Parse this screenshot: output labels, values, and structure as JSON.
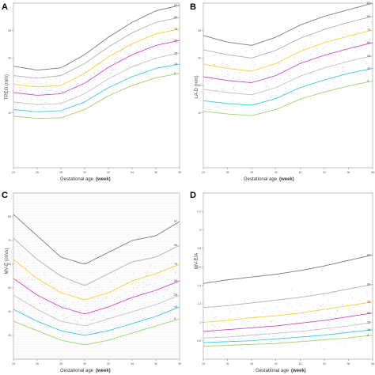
{
  "figure": {
    "panels": [
      {
        "letter": "A",
        "ylabel": "TPEG (mm)",
        "xlabel": "Gestational age",
        "xunit": "(week)"
      },
      {
        "letter": "B",
        "ylabel": "LA-D (mm)",
        "xlabel": "Gestational age",
        "xunit": "(week)"
      },
      {
        "letter": "C",
        "ylabel": "MV-E (cm/s)",
        "xlabel": "Gestational age",
        "xunit": "(week)"
      },
      {
        "letter": "D",
        "ylabel": "MV-E/A",
        "xlabel": "Gestational age",
        "xunit": "(week)"
      }
    ]
  },
  "chart_data": [
    {
      "type": "line",
      "panel": "A",
      "title": "",
      "xlabel": "Gestational age (week)",
      "ylabel": "TPEG (mm)",
      "x": [
        24,
        26,
        28,
        30,
        32,
        34,
        36,
        38
      ],
      "xlim": [
        24,
        38
      ],
      "ylim": [
        0,
        30
      ],
      "yticks": [
        10,
        20,
        25
      ],
      "grid": false,
      "scatter": true,
      "series": [
        {
          "name": "97",
          "color": "#7a7a7a",
          "values": [
            18.5,
            17.8,
            18.2,
            20.6,
            23.8,
            26.5,
            28.6,
            29.6
          ]
        },
        {
          "name": "90",
          "color": "#b0b0b0",
          "values": [
            16.8,
            16.3,
            16.8,
            19.0,
            22.0,
            24.6,
            26.5,
            27.4
          ]
        },
        {
          "name": "75",
          "color": "#f2d23a",
          "values": [
            15.2,
            14.7,
            15.0,
            17.2,
            20.2,
            22.6,
            24.4,
            25.3
          ]
        },
        {
          "name": "50",
          "color": "#d24ac8",
          "values": [
            13.7,
            13.2,
            13.5,
            15.4,
            18.3,
            20.6,
            22.3,
            23.2
          ]
        },
        {
          "name": "25",
          "color": "#c2c2c2",
          "values": [
            12.0,
            11.5,
            11.7,
            13.5,
            16.2,
            18.4,
            20.0,
            20.9
          ]
        },
        {
          "name": "10",
          "color": "#3cc8e0",
          "values": [
            10.6,
            10.2,
            10.4,
            12.0,
            14.6,
            16.6,
            18.1,
            18.9
          ]
        },
        {
          "name": "3",
          "color": "#9ad66a",
          "values": [
            9.4,
            9.0,
            9.1,
            10.6,
            13.1,
            15.0,
            16.4,
            17.2
          ]
        }
      ]
    },
    {
      "type": "line",
      "panel": "B",
      "title": "",
      "xlabel": "Gestational age (week)",
      "ylabel": "LA-D (mm)",
      "x": [
        24,
        26,
        28,
        30,
        32,
        34,
        36,
        38
      ],
      "xlim": [
        24,
        38
      ],
      "ylim": [
        0,
        30
      ],
      "yticks": [
        10,
        15,
        20,
        25
      ],
      "grid": false,
      "scatter": true,
      "series": [
        {
          "name": "97",
          "color": "#7a7a7a",
          "values": [
            24.1,
            22.9,
            22.3,
            23.8,
            26.0,
            27.6,
            28.8,
            30.0
          ]
        },
        {
          "name": "90",
          "color": "#b0b0b0",
          "values": [
            21.5,
            20.6,
            20.0,
            21.4,
            23.6,
            25.2,
            26.5,
            27.6
          ]
        },
        {
          "name": "75",
          "color": "#f2d23a",
          "values": [
            18.9,
            18.1,
            17.6,
            19.0,
            21.2,
            22.8,
            24.0,
            25.1
          ]
        },
        {
          "name": "50",
          "color": "#d24ac8",
          "values": [
            16.6,
            15.9,
            15.5,
            16.8,
            19.0,
            20.5,
            21.7,
            22.8
          ]
        },
        {
          "name": "25",
          "color": "#c2c2c2",
          "values": [
            14.3,
            13.7,
            13.3,
            14.6,
            16.7,
            18.2,
            19.4,
            20.4
          ]
        },
        {
          "name": "10",
          "color": "#3cc8e0",
          "values": [
            12.2,
            11.7,
            11.4,
            12.6,
            14.6,
            16.0,
            17.2,
            18.1
          ]
        },
        {
          "name": "3",
          "color": "#9ad66a",
          "values": [
            10.3,
            9.8,
            9.5,
            10.6,
            12.5,
            13.8,
            14.9,
            15.8
          ]
        }
      ]
    },
    {
      "type": "line",
      "panel": "C",
      "title": "",
      "xlabel": "Gestational age (week)",
      "ylabel": "MV-E (cm/s)",
      "x": [
        24,
        26,
        28,
        30,
        32,
        34,
        36,
        38
      ],
      "xlim": [
        24,
        38
      ],
      "ylim": [
        20,
        90
      ],
      "yticks": [
        30,
        40,
        50,
        60,
        70,
        80
      ],
      "grid": true,
      "scatter": true,
      "series": [
        {
          "name": "97",
          "color": "#7a7a7a",
          "values": [
            81,
            72,
            63,
            60,
            65,
            70,
            72,
            78
          ]
        },
        {
          "name": "90",
          "color": "#b0b0b0",
          "values": [
            71,
            62,
            55,
            51,
            56,
            61,
            63,
            68
          ]
        },
        {
          "name": "75",
          "color": "#f2d23a",
          "values": [
            62,
            54,
            48,
            45,
            48,
            53,
            56,
            60
          ]
        },
        {
          "name": "50",
          "color": "#d24ac8",
          "values": [
            54,
            47,
            42,
            39,
            42,
            46,
            49,
            53
          ]
        },
        {
          "name": "25",
          "color": "#c2c2c2",
          "values": [
            47,
            41,
            36,
            34,
            37,
            40,
            43,
            47
          ]
        },
        {
          "name": "10",
          "color": "#3cc8e0",
          "values": [
            41,
            36,
            32,
            30,
            32,
            35,
            38,
            42
          ]
        },
        {
          "name": "3",
          "color": "#9ad66a",
          "values": [
            36,
            32,
            28,
            26,
            28,
            31,
            34,
            37
          ]
        }
      ]
    },
    {
      "type": "line",
      "panel": "D",
      "title": "",
      "xlabel": "Gestational age (week)",
      "ylabel": "MV-E/A",
      "x": [
        24,
        26,
        28,
        30,
        32,
        34,
        36,
        38
      ],
      "xlim": [
        24,
        38
      ],
      "ylim": [
        0.6,
        2.4
      ],
      "yticks": [
        0.8,
        1.0,
        1.2,
        1.4,
        1.6,
        1.8,
        2.0,
        2.2
      ],
      "grid": false,
      "scatter": true,
      "series": [
        {
          "name": "97",
          "color": "#7a7a7a",
          "values": [
            1.42,
            1.46,
            1.49,
            1.52,
            1.56,
            1.61,
            1.67,
            1.73
          ]
        },
        {
          "name": "90",
          "color": "#b0b0b0",
          "values": [
            1.16,
            1.18,
            1.21,
            1.24,
            1.27,
            1.31,
            1.36,
            1.41
          ]
        },
        {
          "name": "75",
          "color": "#f2d23a",
          "values": [
            1.0,
            1.02,
            1.05,
            1.07,
            1.1,
            1.14,
            1.18,
            1.22
          ]
        },
        {
          "name": "50",
          "color": "#d24ac8",
          "values": [
            0.9,
            0.92,
            0.94,
            0.96,
            0.99,
            1.02,
            1.06,
            1.1
          ]
        },
        {
          "name": "25",
          "color": "#c2c2c2",
          "values": [
            0.83,
            0.84,
            0.86,
            0.88,
            0.9,
            0.93,
            0.96,
            1.0
          ]
        },
        {
          "name": "10",
          "color": "#3cc8e0",
          "values": [
            0.78,
            0.79,
            0.8,
            0.82,
            0.84,
            0.86,
            0.89,
            0.92
          ]
        },
        {
          "name": "3",
          "color": "#9ad66a",
          "values": [
            0.74,
            0.75,
            0.76,
            0.77,
            0.79,
            0.81,
            0.83,
            0.86
          ]
        }
      ]
    }
  ]
}
